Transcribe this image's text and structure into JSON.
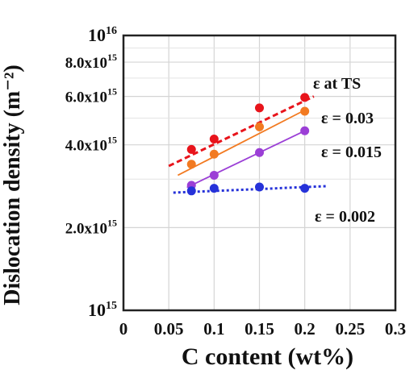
{
  "chart_data": {
    "type": "scatter",
    "xlabel": "C content (wt%)",
    "ylabel": "Dislocation density (m⁻²)",
    "xlim": [
      0,
      0.3
    ],
    "ylim": [
      1000000000000000.0,
      1e+16
    ],
    "yscale": "log",
    "grid": true,
    "x_ticks": [
      0,
      0.05,
      0.1,
      0.15,
      0.2,
      0.25,
      0.3
    ],
    "x_tick_labels": [
      "0",
      "0.05",
      "0.1",
      "0.15",
      "0.2",
      "0.25",
      "0.3"
    ],
    "y_ticks": [
      {
        "value": 1e+16,
        "mantissa": "10",
        "exponent": "16"
      },
      {
        "value": 8000000000000000.0,
        "mantissa": "8.0x10",
        "exponent": "15"
      },
      {
        "value": 6000000000000000.0,
        "mantissa": "6.0x10",
        "exponent": "15"
      },
      {
        "value": 4000000000000000.0,
        "mantissa": "4.0x10",
        "exponent": "15"
      },
      {
        "value": 2000000000000000.0,
        "mantissa": "2.0x10",
        "exponent": "15"
      },
      {
        "value": 1000000000000000.0,
        "mantissa": "10",
        "exponent": "15"
      }
    ],
    "y_minor_gridlines": [
      3000000000000000.0,
      5000000000000000.0,
      7000000000000000.0,
      9000000000000000.0
    ],
    "series": [
      {
        "name": "ε at TS",
        "color": "#e8141b",
        "line_style": "dashed",
        "x": [
          0.075,
          0.1,
          0.15,
          0.2
        ],
        "y": [
          3850000000000000.0,
          4200000000000000.0,
          5450000000000000.0,
          5950000000000000.0
        ],
        "fit": {
          "x": [
            0.05,
            0.21
          ],
          "y": [
            3350000000000000.0,
            6000000000000000.0
          ]
        }
      },
      {
        "name": "ε = 0.03",
        "color": "#f27a21",
        "line_style": "solid",
        "x": [
          0.075,
          0.1,
          0.15,
          0.2
        ],
        "y": [
          3400000000000000.0,
          3700000000000000.0,
          4650000000000000.0,
          5300000000000000.0
        ],
        "fit": {
          "x": [
            0.06,
            0.2
          ],
          "y": [
            3100000000000000.0,
            5350000000000000.0
          ]
        }
      },
      {
        "name": "ε = 0.015",
        "color": "#9b3fd6",
        "line_style": "solid",
        "x": [
          0.075,
          0.1,
          0.15,
          0.2
        ],
        "y": [
          2850000000000000.0,
          3100000000000000.0,
          3750000000000000.0,
          4500000000000000.0
        ],
        "fit": {
          "x": [
            0.07,
            0.2
          ],
          "y": [
            2800000000000000.0,
            4500000000000000.0
          ]
        }
      },
      {
        "name": "ε = 0.002",
        "color": "#2632d9",
        "line_style": "dotted",
        "x": [
          0.075,
          0.1,
          0.15,
          0.2
        ],
        "y": [
          2720000000000000.0,
          2780000000000000.0,
          2810000000000000.0,
          2780000000000000.0
        ],
        "fit": {
          "x": [
            0.055,
            0.225
          ],
          "y": [
            2680000000000000.0,
            2830000000000000.0
          ]
        }
      }
    ]
  }
}
